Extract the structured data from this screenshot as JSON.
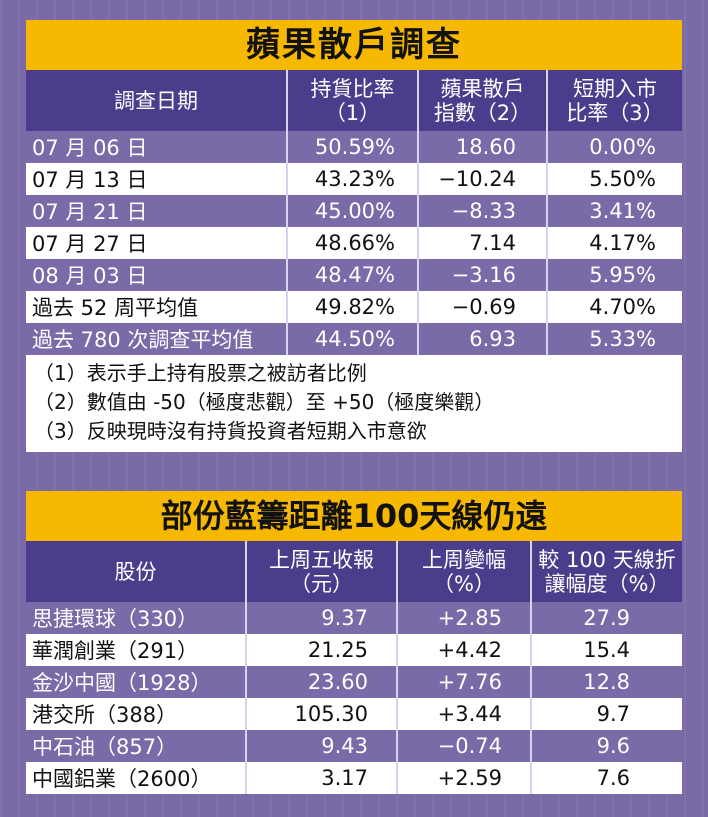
{
  "survey": {
    "title": "蘋果散戶調查",
    "headers": [
      "調查日期",
      "持貨比率\n（1）",
      "蘋果散戶\n指數（2）",
      "短期入市\n比率（3）"
    ],
    "rows": [
      [
        "07 月 06 日",
        "50.59%",
        "18.60",
        "0.00%"
      ],
      [
        "07 月 13 日",
        "43.23%",
        "−10.24",
        "5.50%"
      ],
      [
        "07 月 21 日",
        "45.00%",
        "−8.33",
        "3.41%"
      ],
      [
        "07 月 27 日",
        "48.66%",
        "7.14",
        "4.17%"
      ],
      [
        "08 月 03 日",
        "48.47%",
        "−3.16",
        "5.95%"
      ],
      [
        "過去 52 周平均值",
        "49.82%",
        "−0.69",
        "4.70%"
      ],
      [
        "過去 780 次調查平均值",
        "44.50%",
        "6.93",
        "5.33%"
      ]
    ],
    "notes": [
      "（1）表示手上持有股票之被訪者比例",
      "（2）數值由 -50（極度悲觀）至 +50（極度樂觀）",
      "（3）反映現時沒有持貨投資者短期入市意欲"
    ]
  },
  "bluechips": {
    "title": "部份藍籌距離100天線仍遠",
    "headers": [
      "股份",
      "上周五收報\n（元）",
      "上周變幅\n（%）",
      "較 100 天線折\n讓幅度（%）"
    ],
    "rows": [
      [
        "思捷環球（330）",
        "9.37",
        "+2.85",
        "27.9"
      ],
      [
        "華潤創業（291）",
        "21.25",
        "+4.42",
        "15.4"
      ],
      [
        "金沙中國（1928）",
        "23.60",
        "+7.76",
        "12.8"
      ],
      [
        "港交所（388）",
        "105.30",
        "+3.44",
        "9.7"
      ],
      [
        "中石油（857）",
        "9.43",
        "−0.74",
        "9.6"
      ],
      [
        "中國鋁業（2600）",
        "3.17",
        "+2.59",
        "7.6"
      ]
    ]
  },
  "colors": {
    "title_bg": "#f6b800",
    "header_bg": "#4c3d8c",
    "odd_row_bg": "#7b6aa8",
    "even_row_bg": "#ffffff",
    "page_bg": "#7b6aa8"
  }
}
